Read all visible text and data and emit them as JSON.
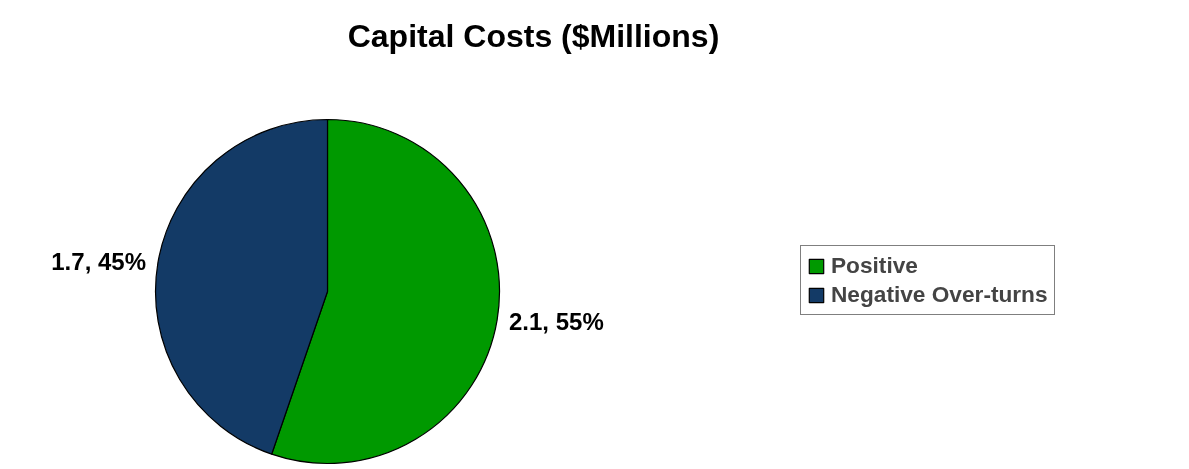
{
  "chart_data": {
    "type": "pie",
    "title": "Capital Costs ($Millions)",
    "categories": [
      "Positive",
      "Negative Over-turns"
    ],
    "values": [
      2.1,
      1.7
    ],
    "colors": [
      "#009900",
      "#133a66"
    ],
    "value_labels": [
      "2.1, 55%",
      "1.7, 45%"
    ],
    "legend": "right"
  }
}
